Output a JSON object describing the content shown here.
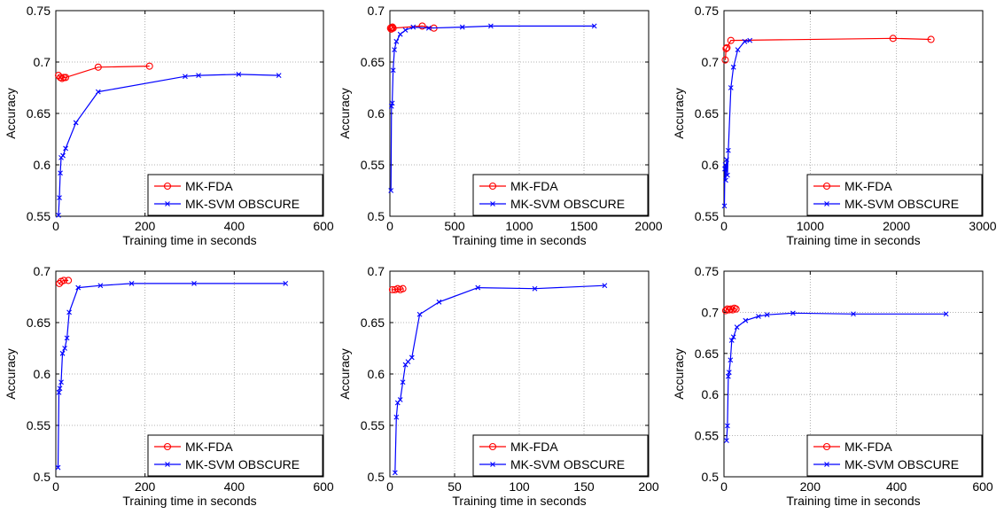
{
  "chart_data": [
    {
      "type": "line",
      "xlabel": "Training time in seconds",
      "ylabel": "Accuracy",
      "xlim": [
        0,
        600
      ],
      "ylim": [
        0.55,
        0.75
      ],
      "xticks": [
        "0",
        "200",
        "400",
        "600"
      ],
      "yticks": [
        "0.55",
        "0.6",
        "0.65",
        "0.7",
        "0.75"
      ],
      "grid": true,
      "legend": "bottom-right",
      "series": [
        {
          "name": "MK-FDA",
          "color": "#ff0000",
          "marker": "circle",
          "x": [
            6,
            10,
            14,
            18,
            22,
            95,
            210
          ],
          "y": [
            0.687,
            0.685,
            0.684,
            0.685,
            0.685,
            0.695,
            0.696
          ]
        },
        {
          "name": "MK-SVM OBSCURE",
          "color": "#0000ff",
          "marker": "x",
          "x": [
            6,
            8,
            10,
            12,
            16,
            22,
            45,
            95,
            290,
            320,
            410,
            500
          ],
          "y": [
            0.551,
            0.568,
            0.592,
            0.607,
            0.609,
            0.616,
            0.641,
            0.671,
            0.686,
            0.687,
            0.688,
            0.687
          ]
        }
      ]
    },
    {
      "type": "line",
      "xlabel": "Training time in seconds",
      "ylabel": "Accuracy",
      "xlim": [
        0,
        2000
      ],
      "ylim": [
        0.5,
        0.7
      ],
      "xticks": [
        "0",
        "500",
        "1000",
        "1500",
        "2000"
      ],
      "yticks": [
        "0.5",
        "0.55",
        "0.6",
        "0.65",
        "0.7"
      ],
      "grid": true,
      "legend": "bottom-right",
      "series": [
        {
          "name": "MK-FDA",
          "color": "#ff0000",
          "marker": "circle",
          "x": [
            5,
            10,
            15,
            20,
            25,
            250,
            340
          ],
          "y": [
            0.683,
            0.682,
            0.683,
            0.684,
            0.683,
            0.685,
            0.683
          ]
        },
        {
          "name": "MK-SVM OBSCURE",
          "color": "#0000ff",
          "marker": "x",
          "x": [
            8,
            12,
            18,
            25,
            35,
            50,
            80,
            120,
            180,
            300,
            560,
            780,
            1580
          ],
          "y": [
            0.525,
            0.607,
            0.61,
            0.642,
            0.662,
            0.67,
            0.677,
            0.681,
            0.684,
            0.683,
            0.684,
            0.685,
            0.685
          ]
        }
      ]
    },
    {
      "type": "line",
      "xlabel": "Training time in seconds",
      "ylabel": "Accuracy",
      "xlim": [
        0,
        3000
      ],
      "ylim": [
        0.55,
        0.75
      ],
      "xticks": [
        "0",
        "1000",
        "2000",
        "3000"
      ],
      "yticks": [
        "0.55",
        "0.6",
        "0.65",
        "0.7",
        "0.75"
      ],
      "grid": true,
      "legend": "bottom-right",
      "series": [
        {
          "name": "MK-FDA",
          "color": "#ff0000",
          "marker": "circle",
          "x": [
            15,
            25,
            35,
            80,
            1960,
            2400
          ],
          "y": [
            0.702,
            0.713,
            0.714,
            0.721,
            0.723,
            0.722
          ]
        },
        {
          "name": "MK-SVM OBSCURE",
          "color": "#0000ff",
          "marker": "x",
          "x": [
            5,
            10,
            15,
            20,
            30,
            40,
            50,
            80,
            110,
            160,
            240,
            300
          ],
          "y": [
            0.56,
            0.596,
            0.6,
            0.585,
            0.605,
            0.59,
            0.614,
            0.675,
            0.695,
            0.712,
            0.72,
            0.721
          ]
        }
      ]
    },
    {
      "type": "line",
      "xlabel": "Training time in seconds",
      "ylabel": "Accuracy",
      "xlim": [
        0,
        600
      ],
      "ylim": [
        0.5,
        0.7
      ],
      "xticks": [
        "0",
        "200",
        "400",
        "600"
      ],
      "yticks": [
        "0.5",
        "0.55",
        "0.6",
        "0.65",
        "0.7"
      ],
      "grid": true,
      "legend": "bottom-right",
      "series": [
        {
          "name": "MK-FDA",
          "color": "#ff0000",
          "marker": "circle",
          "x": [
            8,
            12,
            18,
            28
          ],
          "y": [
            0.688,
            0.69,
            0.691,
            0.691
          ]
        },
        {
          "name": "MK-SVM OBSCURE",
          "color": "#0000ff",
          "marker": "x",
          "x": [
            5,
            7,
            9,
            12,
            15,
            20,
            25,
            30,
            50,
            100,
            170,
            310,
            515
          ],
          "y": [
            0.509,
            0.582,
            0.586,
            0.592,
            0.62,
            0.625,
            0.635,
            0.66,
            0.684,
            0.686,
            0.688,
            0.688,
            0.688
          ]
        }
      ]
    },
    {
      "type": "line",
      "xlabel": "Training time in seconds",
      "ylabel": "Accuracy",
      "xlim": [
        0,
        200
      ],
      "ylim": [
        0.5,
        0.7
      ],
      "xticks": [
        "0",
        "50",
        "100",
        "150",
        "200"
      ],
      "yticks": [
        "0.5",
        "0.55",
        "0.6",
        "0.65",
        "0.7"
      ],
      "grid": true,
      "legend": "bottom-right",
      "series": [
        {
          "name": "MK-FDA",
          "color": "#ff0000",
          "marker": "circle",
          "x": [
            2,
            4,
            6,
            8,
            10
          ],
          "y": [
            0.682,
            0.682,
            0.683,
            0.682,
            0.683
          ]
        },
        {
          "name": "MK-SVM OBSCURE",
          "color": "#0000ff",
          "marker": "x",
          "x": [
            4,
            5,
            6,
            8,
            10,
            12,
            14,
            17,
            23,
            38,
            68,
            112,
            166
          ],
          "y": [
            0.504,
            0.558,
            0.572,
            0.575,
            0.592,
            0.609,
            0.612,
            0.616,
            0.658,
            0.67,
            0.684,
            0.683,
            0.686
          ]
        }
      ]
    },
    {
      "type": "line",
      "xlabel": "Training time in seconds",
      "ylabel": "Accuracy",
      "xlim": [
        0,
        600
      ],
      "ylim": [
        0.5,
        0.75
      ],
      "xticks": [
        "0",
        "200",
        "400",
        "600"
      ],
      "yticks": [
        "0.5",
        "0.55",
        "0.6",
        "0.65",
        "0.7",
        "0.75"
      ],
      "grid": true,
      "legend": "bottom-right",
      "series": [
        {
          "name": "MK-FDA",
          "color": "#ff0000",
          "marker": "circle",
          "x": [
            4,
            8,
            12,
            16,
            20,
            24,
            28
          ],
          "y": [
            0.702,
            0.704,
            0.703,
            0.704,
            0.703,
            0.705,
            0.704
          ]
        },
        {
          "name": "MK-SVM OBSCURE",
          "color": "#0000ff",
          "marker": "x",
          "x": [
            6,
            8,
            10,
            12,
            15,
            18,
            22,
            30,
            50,
            80,
            100,
            160,
            300,
            515
          ],
          "y": [
            0.544,
            0.562,
            0.622,
            0.627,
            0.642,
            0.666,
            0.67,
            0.682,
            0.69,
            0.695,
            0.697,
            0.699,
            0.698,
            0.698
          ]
        }
      ]
    }
  ]
}
